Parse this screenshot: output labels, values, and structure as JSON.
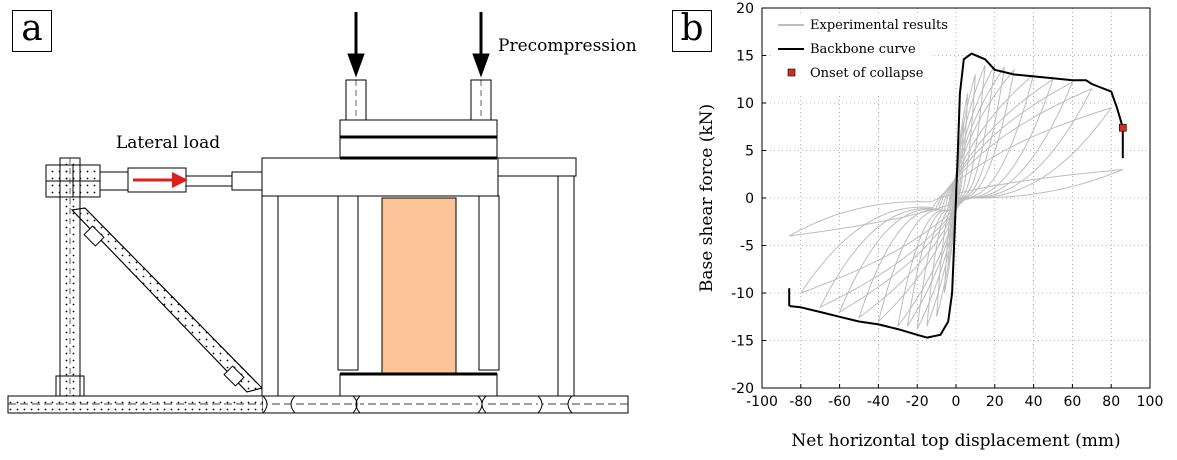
{
  "panel_a": {
    "label": "a",
    "annotations": {
      "precompression": "Precompression",
      "lateral_load": "Lateral load"
    },
    "colors": {
      "arrow": "#e21b1b",
      "specimen": "#fdc497",
      "line": "#000000"
    }
  },
  "panel_b": {
    "label": "b"
  },
  "chart_data": {
    "type": "line",
    "title": "",
    "xlabel": "Net horizontal top displacement (mm)",
    "ylabel": "Base shear force (kN)",
    "xlim": [
      -100,
      100
    ],
    "ylim": [
      -20,
      20
    ],
    "xticks": [
      -100,
      -80,
      -60,
      -40,
      -20,
      0,
      20,
      40,
      60,
      80,
      100
    ],
    "yticks": [
      -20,
      -15,
      -10,
      -5,
      0,
      5,
      10,
      15,
      20
    ],
    "grid": true,
    "legend_placement": "top-left",
    "series": [
      {
        "name": "Experimental results",
        "color": "#bdbdbd",
        "cycles": [
          {
            "amp": 2,
            "fpos": 4,
            "fneg": -3
          },
          {
            "amp": 4,
            "fpos": 8,
            "fneg": -7
          },
          {
            "amp": 6,
            "fpos": 11,
            "fneg": -10
          },
          {
            "amp": 10,
            "fpos": 13,
            "fneg": -12.5
          },
          {
            "amp": 15,
            "fpos": 14,
            "fneg": -13.5
          },
          {
            "amp": 20,
            "fpos": 14,
            "fneg": -13.8
          },
          {
            "amp": 25,
            "fpos": 13.8,
            "fneg": -13.5
          },
          {
            "amp": 30,
            "fpos": 13.5,
            "fneg": -13.5
          },
          {
            "amp": 40,
            "fpos": 13,
            "fneg": -13
          },
          {
            "amp": 50,
            "fpos": 12.5,
            "fneg": -12.6
          },
          {
            "amp": 60,
            "fpos": 12.2,
            "fneg": -12
          },
          {
            "amp": 70,
            "fpos": 11.5,
            "fneg": -11.5
          },
          {
            "amp": 80,
            "fpos": 9.5,
            "fneg": -10
          },
          {
            "amp": 86,
            "fpos": 3,
            "fneg": -4
          }
        ]
      },
      {
        "name": "Backbone curve",
        "color": "#000000",
        "x": [
          -86,
          -86,
          -85,
          -80,
          -70,
          -60,
          -50,
          -40,
          -30,
          -20,
          -15,
          -8,
          -4,
          -2,
          -1,
          0,
          1,
          2,
          4,
          8,
          15,
          20,
          30,
          40,
          50,
          60,
          67,
          70,
          80,
          83,
          86,
          86
        ],
        "y": [
          -9.5,
          -11.3,
          -11.4,
          -11.5,
          -12.0,
          -12.5,
          -13.0,
          -13.3,
          -13.8,
          -14.4,
          -14.7,
          -14.4,
          -13.0,
          -10.0,
          -5.0,
          0,
          5.0,
          11.0,
          14.6,
          15.2,
          14.6,
          13.5,
          13.0,
          12.8,
          12.6,
          12.4,
          12.4,
          12.0,
          11.2,
          9.5,
          7.4,
          4.2
        ]
      },
      {
        "name": "Onset of collapse",
        "color": "#d62b1f",
        "marker": "square",
        "x": [
          86
        ],
        "y": [
          7.4
        ]
      }
    ]
  }
}
